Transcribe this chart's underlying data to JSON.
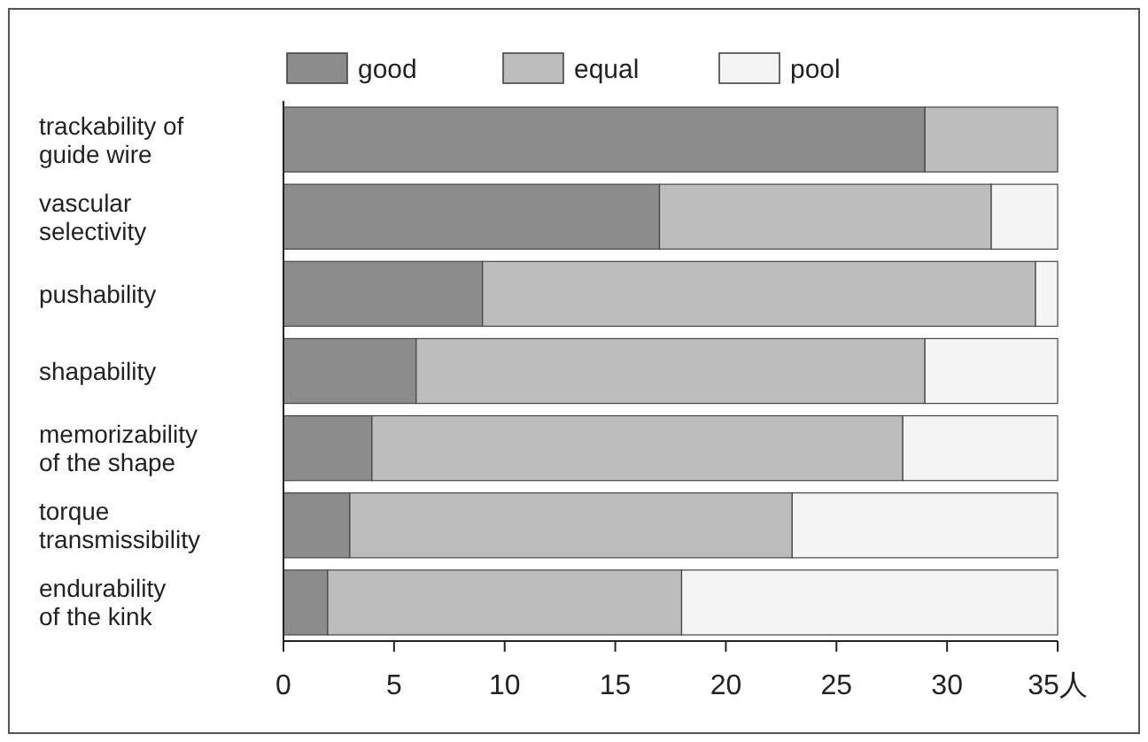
{
  "chart_data": {
    "type": "bar",
    "orientation": "horizontal",
    "stacked": true,
    "legend": "top",
    "categories": [
      "trackability of\nguide wire",
      "vascular\nselectivity",
      "pushability",
      "shapability",
      "memorizability\nof the shape",
      "torque\ntransmissibility",
      "endurability\nof the kink"
    ],
    "series": [
      {
        "name": "good",
        "color": "#8c8c8c",
        "values": [
          29,
          17,
          9,
          6,
          4,
          3,
          2
        ]
      },
      {
        "name": "equal",
        "color": "#bdbdbd",
        "values": [
          6,
          15,
          25,
          23,
          24,
          20,
          16
        ]
      },
      {
        "name": "pool",
        "color": "#f4f4f4",
        "values": [
          0,
          3,
          1,
          6,
          7,
          12,
          17
        ]
      }
    ],
    "xlim": [
      0,
      35
    ],
    "xticks": [
      0,
      5,
      10,
      15,
      20,
      25,
      30,
      {
        "value": 35,
        "label": "35人"
      }
    ]
  }
}
